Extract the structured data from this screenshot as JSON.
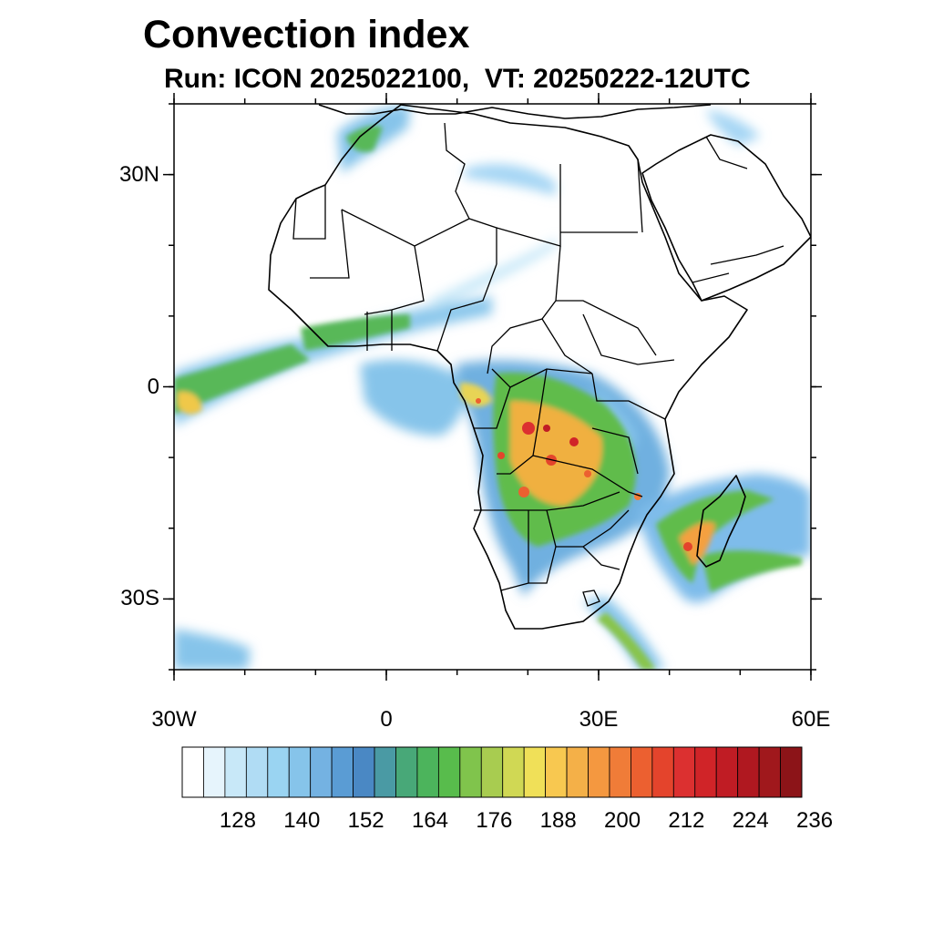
{
  "title": "Convection index",
  "subtitle": "Run: ICON 2025022100,  VT: 20250222-12UTC",
  "chart_data": {
    "type": "map",
    "variable": "Convection index",
    "lon_range": [
      -30,
      60
    ],
    "lat_range": [
      -40,
      40
    ],
    "x_ticks": [
      {
        "value": -30,
        "label": "30W"
      },
      {
        "value": 0,
        "label": "0"
      },
      {
        "value": 30,
        "label": "30E"
      },
      {
        "value": 60,
        "label": "60E"
      }
    ],
    "y_ticks": [
      {
        "value": 30,
        "label": "30N"
      },
      {
        "value": 0,
        "label": "0"
      },
      {
        "value": -30,
        "label": "30S"
      }
    ],
    "colorbar": {
      "colors": [
        "#ffffff",
        "#e6f4fc",
        "#c8e8f8",
        "#b0dcf4",
        "#9ad4f2",
        "#86c4ea",
        "#74b2e2",
        "#5a9cd4",
        "#4a88c4",
        "#4a9aa4",
        "#48a878",
        "#4cb45c",
        "#58bc4c",
        "#80c44c",
        "#a8cc50",
        "#d0d854",
        "#f0e058",
        "#f8c850",
        "#f4b048",
        "#f49840",
        "#f07c38",
        "#ec6030",
        "#e4442c",
        "#dc3030",
        "#d02428",
        "#c01c24",
        "#b01820",
        "#a0181c",
        "#8c1418"
      ],
      "tick_labels": [
        "128",
        "140",
        "152",
        "164",
        "176",
        "188",
        "200",
        "212",
        "224",
        "236"
      ]
    }
  }
}
